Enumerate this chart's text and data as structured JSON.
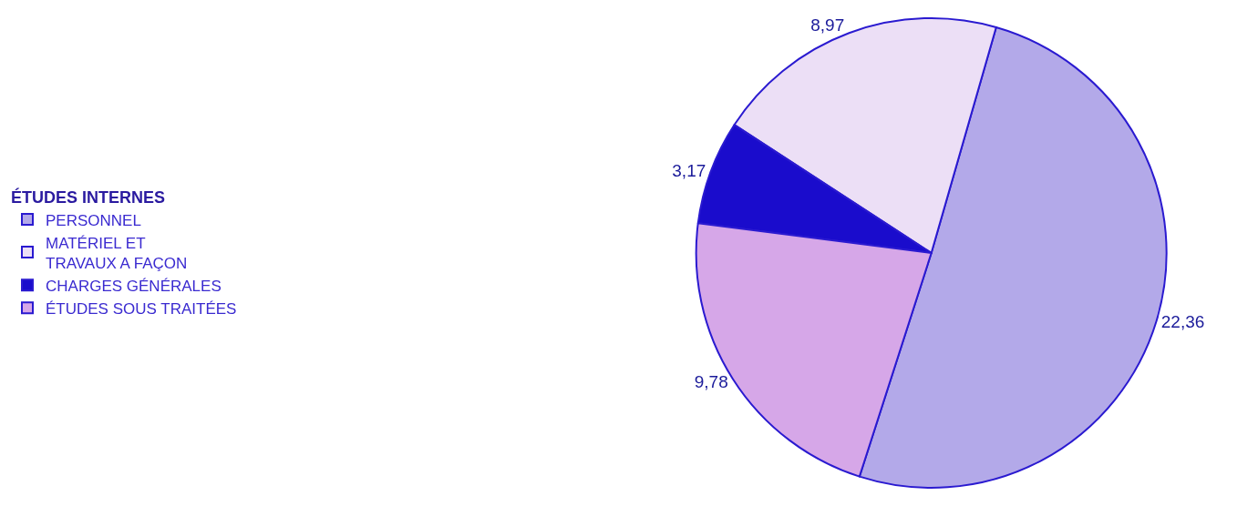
{
  "chart_data": {
    "type": "pie",
    "legend_title": "ÉTUDES INTERNES",
    "categories": [
      "PERSONNEL",
      "MATÉRIEL ET\nTRAVAUX A FAÇON",
      "CHARGES GÉNÉRALES",
      "ÉTUDES SOUS TRAITÉES"
    ],
    "values": [
      22.36,
      8.97,
      3.17,
      9.78
    ],
    "value_labels": [
      "22,36",
      "8,97",
      "3,17",
      "9,78"
    ],
    "colors": [
      "#b3a9e9",
      "#ecdff6",
      "#1a0ccc",
      "#d6a7e8"
    ],
    "legend": "left"
  }
}
